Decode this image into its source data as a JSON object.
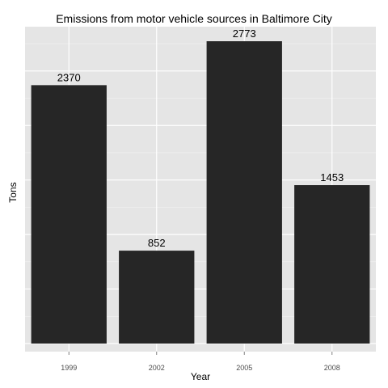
{
  "chart_data": {
    "type": "bar",
    "title": "Emissions from motor vehicle sources in Baltimore City",
    "xlabel": "Year",
    "ylabel": "Tons",
    "categories": [
      "1999",
      "2002",
      "2005",
      "2008"
    ],
    "values": [
      2370,
      852,
      2773,
      1453
    ],
    "data_labels": [
      "2370",
      "852",
      "2773",
      "1453"
    ],
    "ylim": [
      0,
      3000
    ],
    "y_tick_labels_shown": false,
    "grid": true,
    "legend": "none",
    "colors": {
      "bar": "#262626",
      "panel": "#e5e5e5",
      "grid_major": "#ffffff",
      "grid_minor": "#f2f2f2",
      "tick_text": "#4d4d4d"
    }
  }
}
